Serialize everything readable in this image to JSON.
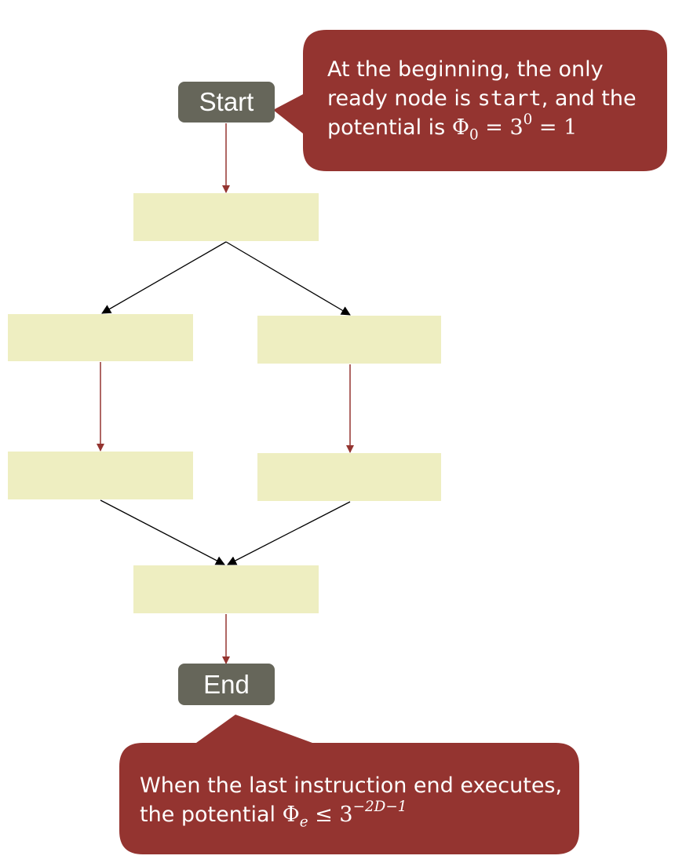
{
  "nodes": {
    "start_label": "Start",
    "end_label": "End"
  },
  "callouts": {
    "top": {
      "prefix": "At the beginning, the only ready node is ",
      "code": "start",
      "middle": ", and the potential is ",
      "phi": "Φ",
      "phi_sub": "0",
      "eq1": " = 3",
      "exp": "0",
      "eq2": " = 1"
    },
    "bottom": {
      "prefix": "When the last instruction ",
      "code": "end",
      "middle": " executes,  the potential ",
      "phi": "Φ",
      "phi_sub": "e",
      "leq": " ≤ 3",
      "exp": "−2D−1"
    }
  },
  "colors": {
    "terminal": "#66665a",
    "node_fill": "#eeeec1",
    "callout": "#943430",
    "red_arrow": "#943430",
    "black_arrow": "#000000"
  }
}
